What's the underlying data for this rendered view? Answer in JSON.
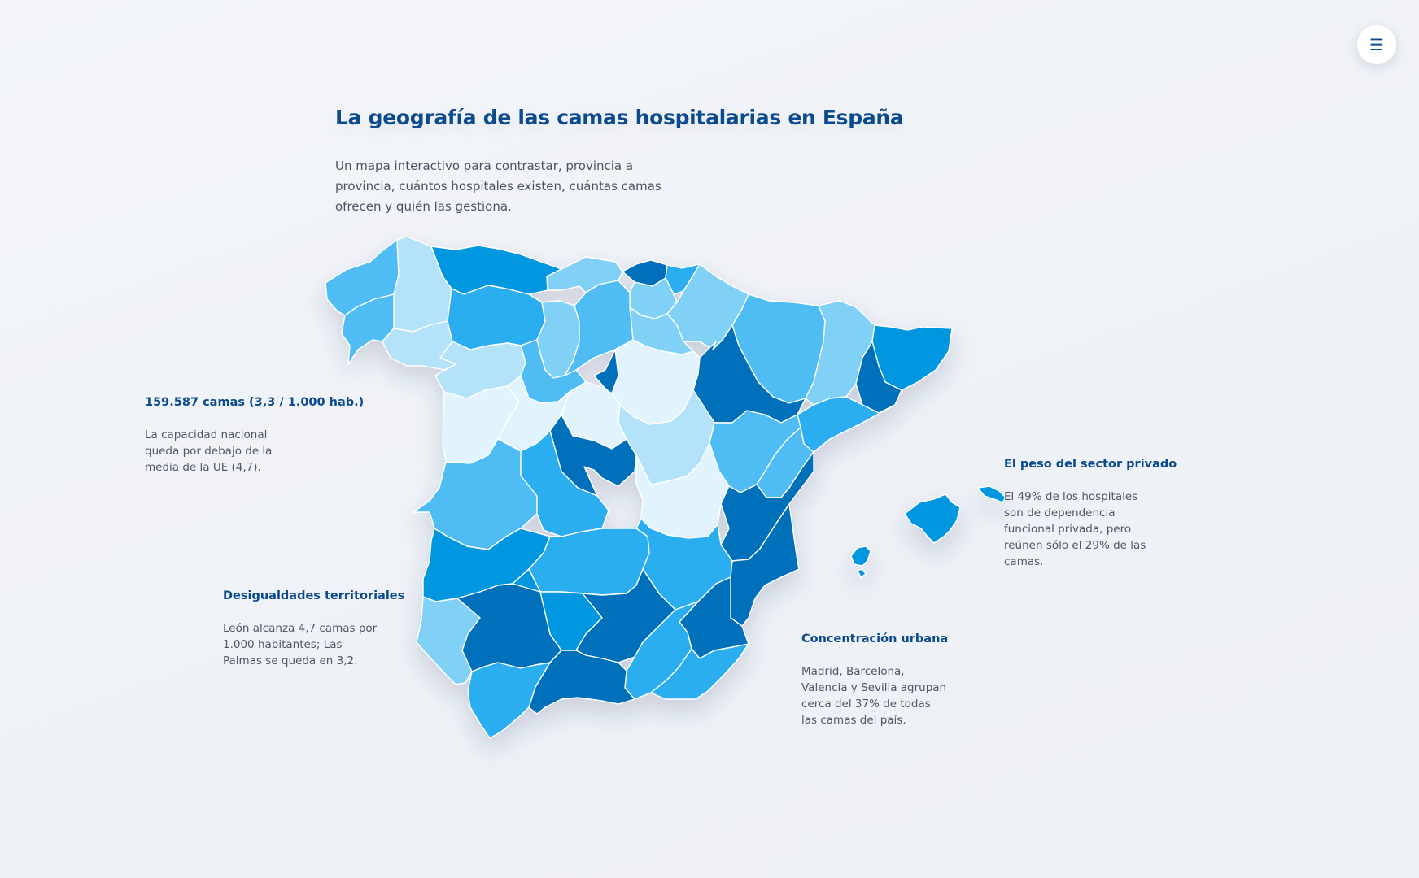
{
  "header": {
    "title": "La geografía de las camas hospitalarias en España",
    "subtitle": "Un mapa interactivo para contrastar, provincia a provincia, cuántos hospitales existen, cuántas camas ofrecen y quién las gestiona."
  },
  "menu": {
    "icon": "menu-icon",
    "glyph": "☰"
  },
  "annotations": {
    "total": {
      "title": "159.587 camas (3,3 / 1.000 hab.)",
      "text": "La capacidad nacional queda por debajo de la media de la UE (4,7)."
    },
    "inequality": {
      "title": "Desigualdades territoriales",
      "text": "León alcanza 4,7 camas por 1.000 habitantes; Las Palmas se queda en 3,2."
    },
    "urban": {
      "title": "Concentración urbana",
      "text": "Madrid, Barcelona, Valencia y Sevilla agrupan cerca del 37% de todas las camas del país."
    },
    "private": {
      "title": "El peso del sector privado",
      "text": "El 49% de los hospitales son de dependencia funcional privada, pero reúnen sólo el 29% de las camas."
    }
  },
  "colors": {
    "title": "#0b4a8c",
    "text": "#4e5866",
    "scale": [
      "#e1f3fc",
      "#b3e2f9",
      "#81d0f6",
      "#4fbdf3",
      "#2aaeef",
      "#0596e0",
      "#0470bb"
    ]
  },
  "map": {
    "regions": [
      {
        "name": "A Coruña",
        "shade": 3
      },
      {
        "name": "Lugo",
        "shade": 1
      },
      {
        "name": "Pontevedra",
        "shade": 3
      },
      {
        "name": "Ourense",
        "shade": 1
      },
      {
        "name": "Asturias",
        "shade": 5
      },
      {
        "name": "Cantabria",
        "shade": 2
      },
      {
        "name": "Bizkaia",
        "shade": 6
      },
      {
        "name": "Gipuzkoa",
        "shade": 4
      },
      {
        "name": "Álava",
        "shade": 2
      },
      {
        "name": "Navarra",
        "shade": 2
      },
      {
        "name": "La Rioja",
        "shade": 2
      },
      {
        "name": "León",
        "shade": 4
      },
      {
        "name": "Palencia",
        "shade": 2
      },
      {
        "name": "Burgos",
        "shade": 3
      },
      {
        "name": "Zamora",
        "shade": 1
      },
      {
        "name": "Valladolid",
        "shade": 3
      },
      {
        "name": "Soria",
        "shade": 0
      },
      {
        "name": "Huesca",
        "shade": 3
      },
      {
        "name": "Lleida",
        "shade": 2
      },
      {
        "name": "Girona",
        "shade": 5
      },
      {
        "name": "Barcelona",
        "shade": 6
      },
      {
        "name": "Zaragoza",
        "shade": 6
      },
      {
        "name": "Tarragona",
        "shade": 4
      },
      {
        "name": "Salamanca",
        "shade": 0
      },
      {
        "name": "Ávila",
        "shade": 0
      },
      {
        "name": "Segovia",
        "shade": 0
      },
      {
        "name": "Madrid",
        "shade": 6
      },
      {
        "name": "Guadalajara",
        "shade": 1
      },
      {
        "name": "Teruel",
        "shade": 3
      },
      {
        "name": "Castellón",
        "shade": 3
      },
      {
        "name": "Cáceres",
        "shade": 3
      },
      {
        "name": "Toledo",
        "shade": 4
      },
      {
        "name": "Cuenca",
        "shade": 0
      },
      {
        "name": "Valencia",
        "shade": 6
      },
      {
        "name": "Badajoz",
        "shade": 5
      },
      {
        "name": "Ciudad Real",
        "shade": 4
      },
      {
        "name": "Albacete",
        "shade": 4
      },
      {
        "name": "Alicante",
        "shade": 6
      },
      {
        "name": "Murcia",
        "shade": 6
      },
      {
        "name": "Huelva",
        "shade": 2
      },
      {
        "name": "Sevilla",
        "shade": 6
      },
      {
        "name": "Córdoba",
        "shade": 5
      },
      {
        "name": "Jaén",
        "shade": 6
      },
      {
        "name": "Granada",
        "shade": 4
      },
      {
        "name": "Almería",
        "shade": 4
      },
      {
        "name": "Málaga",
        "shade": 6
      },
      {
        "name": "Cádiz",
        "shade": 4
      },
      {
        "name": "Mallorca",
        "shade": 5
      },
      {
        "name": "Menorca",
        "shade": 5
      },
      {
        "name": "Ibiza",
        "shade": 5
      },
      {
        "name": "Formentera",
        "shade": 5
      }
    ]
  }
}
